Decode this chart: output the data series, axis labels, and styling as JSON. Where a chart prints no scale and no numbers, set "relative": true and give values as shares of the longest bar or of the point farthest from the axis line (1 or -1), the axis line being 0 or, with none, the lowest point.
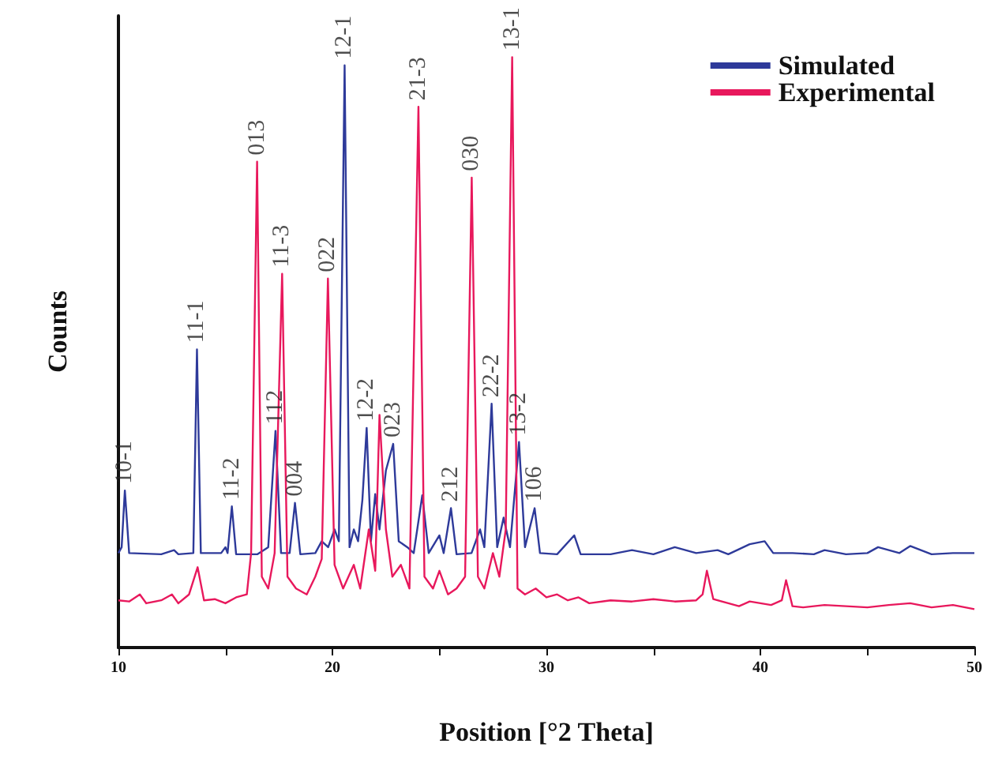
{
  "chart_data": {
    "type": "line",
    "relative": true,
    "xlabel": "Position [°2 Theta]",
    "ylabel": "Counts",
    "xlim": [
      10,
      50
    ],
    "xticks": [
      10,
      {
        "value": 15,
        "label": null
      },
      20,
      {
        "value": 25,
        "label": null
      },
      30,
      {
        "value": 35,
        "label": null
      },
      40,
      {
        "value": 45,
        "label": null
      },
      50
    ],
    "grid": false,
    "legend": "top right",
    "marker": "none",
    "line_style": "solid",
    "series": [
      {
        "name": "Simulated",
        "color": "#2e3a9a",
        "x": [
          10,
          10.15,
          10.3,
          10.5,
          12,
          12.6,
          12.8,
          13.5,
          13.67,
          13.85,
          14.8,
          15.0,
          15.1,
          15.3,
          15.5,
          16.5,
          17.0,
          17.34,
          17.6,
          18.0,
          18.25,
          18.5,
          19.2,
          19.5,
          19.8,
          20.1,
          20.3,
          20.57,
          20.8,
          21.0,
          21.2,
          21.4,
          21.6,
          21.8,
          22.0,
          22.2,
          22.5,
          22.84,
          23.1,
          23.5,
          23.8,
          24.2,
          24.5,
          25.0,
          25.2,
          25.54,
          25.8,
          26.5,
          26.9,
          27.1,
          27.44,
          27.7,
          28.0,
          28.3,
          28.72,
          29.0,
          29.45,
          29.7,
          30.5,
          31.3,
          31.6,
          33,
          34,
          35,
          36,
          37,
          38,
          38.5,
          39.5,
          40.2,
          40.6,
          41.5,
          42.5,
          43,
          44,
          45,
          45.5,
          46.5,
          47,
          48,
          49,
          50
        ],
        "values": [
          0.16,
          0.17,
          0.266,
          0.16,
          0.158,
          0.165,
          0.158,
          0.16,
          0.505,
          0.16,
          0.16,
          0.17,
          0.16,
          0.239,
          0.158,
          0.158,
          0.17,
          0.367,
          0.16,
          0.16,
          0.245,
          0.158,
          0.16,
          0.18,
          0.17,
          0.2,
          0.18,
          0.986,
          0.17,
          0.2,
          0.18,
          0.25,
          0.372,
          0.18,
          0.26,
          0.2,
          0.3,
          0.345,
          0.18,
          0.17,
          0.16,
          0.258,
          0.16,
          0.19,
          0.16,
          0.236,
          0.158,
          0.16,
          0.2,
          0.17,
          0.413,
          0.17,
          0.22,
          0.17,
          0.348,
          0.17,
          0.236,
          0.16,
          0.158,
          0.19,
          0.158,
          0.158,
          0.165,
          0.158,
          0.17,
          0.16,
          0.165,
          0.158,
          0.175,
          0.18,
          0.16,
          0.16,
          0.158,
          0.165,
          0.158,
          0.16,
          0.17,
          0.16,
          0.172,
          0.158,
          0.16,
          0.16
        ]
      },
      {
        "name": "Experimental",
        "color": "#e8185c",
        "x": [
          10,
          10.5,
          11.0,
          11.3,
          12,
          12.5,
          12.8,
          13.3,
          13.7,
          14.0,
          14.5,
          15,
          15.5,
          16.0,
          16.2,
          16.48,
          16.7,
          17.0,
          17.3,
          17.65,
          17.9,
          18.3,
          18.8,
          19.2,
          19.5,
          19.79,
          20.1,
          20.5,
          21.0,
          21.3,
          21.7,
          22.0,
          22.2,
          22.5,
          22.8,
          23.2,
          23.6,
          24.02,
          24.3,
          24.7,
          25.0,
          25.4,
          25.8,
          26.2,
          26.51,
          26.8,
          27.1,
          27.5,
          27.8,
          28.1,
          28.4,
          28.65,
          29.0,
          29.5,
          30.0,
          30.5,
          31,
          31.5,
          32,
          33,
          34,
          35,
          36,
          37,
          37.3,
          37.5,
          37.8,
          38.5,
          39,
          39.5,
          40.5,
          41.0,
          41.2,
          41.5,
          42,
          43,
          44,
          45,
          46,
          47,
          48,
          49,
          50
        ],
        "values": [
          0.08,
          0.078,
          0.09,
          0.075,
          0.08,
          0.09,
          0.075,
          0.09,
          0.136,
          0.08,
          0.082,
          0.075,
          0.085,
          0.09,
          0.16,
          0.823,
          0.12,
          0.1,
          0.16,
          0.633,
          0.12,
          0.1,
          0.09,
          0.12,
          0.15,
          0.625,
          0.14,
          0.1,
          0.14,
          0.1,
          0.2,
          0.13,
          0.394,
          0.2,
          0.12,
          0.14,
          0.1,
          0.916,
          0.12,
          0.1,
          0.13,
          0.09,
          0.1,
          0.12,
          0.796,
          0.12,
          0.1,
          0.16,
          0.12,
          0.2,
          1.0,
          0.1,
          0.09,
          0.1,
          0.085,
          0.09,
          0.08,
          0.085,
          0.075,
          0.08,
          0.078,
          0.082,
          0.078,
          0.08,
          0.09,
          0.13,
          0.082,
          0.075,
          0.07,
          0.078,
          0.072,
          0.08,
          0.114,
          0.07,
          0.068,
          0.072,
          0.07,
          0.068,
          0.072,
          0.075,
          0.068,
          0.072,
          0.065
        ]
      }
    ],
    "annotations": [
      {
        "text": "10-1",
        "x": 10.3,
        "y": 0.266
      },
      {
        "text": "11-1",
        "x": 13.67,
        "y": 0.505
      },
      {
        "text": "11-2",
        "x": 15.3,
        "y": 0.239
      },
      {
        "text": "013",
        "x": 16.48,
        "y": 0.823
      },
      {
        "text": "112",
        "x": 17.34,
        "y": 0.367
      },
      {
        "text": "11-3",
        "x": 17.65,
        "y": 0.633
      },
      {
        "text": "004",
        "x": 18.25,
        "y": 0.245
      },
      {
        "text": "022",
        "x": 19.79,
        "y": 0.625
      },
      {
        "text": "12-1",
        "x": 20.57,
        "y": 0.986
      },
      {
        "text": "12-2",
        "x": 21.6,
        "y": 0.372
      },
      {
        "text": "023",
        "x": 22.84,
        "y": 0.345
      },
      {
        "text": "21-3",
        "x": 24.02,
        "y": 0.916
      },
      {
        "text": "212",
        "x": 25.54,
        "y": 0.236
      },
      {
        "text": "030",
        "x": 26.51,
        "y": 0.796
      },
      {
        "text": "22-2",
        "x": 27.44,
        "y": 0.413
      },
      {
        "text": "13-1",
        "x": 28.4,
        "y": 1.0
      },
      {
        "text": "13-2",
        "x": 28.72,
        "y": 0.348
      },
      {
        "text": "106",
        "x": 29.45,
        "y": 0.236
      }
    ]
  }
}
